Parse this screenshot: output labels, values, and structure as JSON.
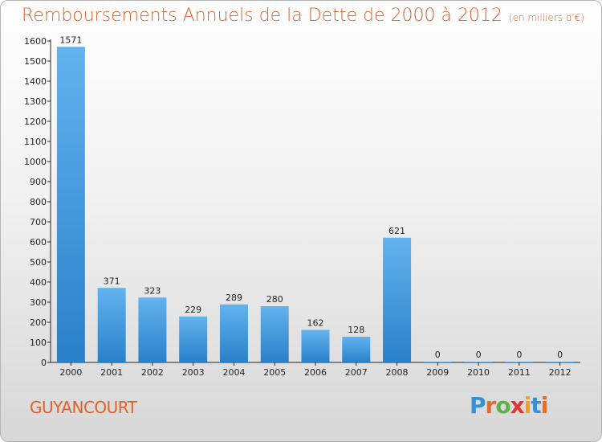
{
  "chart_data": {
    "type": "bar",
    "title": "Remboursements Annuels de la Dette de 2000 à 2012",
    "unit_note": "(en milliers d'€)",
    "categories": [
      "2000",
      "2001",
      "2002",
      "2003",
      "2004",
      "2005",
      "2006",
      "2007",
      "2008",
      "2009",
      "2010",
      "2011",
      "2012"
    ],
    "values": [
      1571,
      371,
      323,
      229,
      289,
      280,
      162,
      128,
      621,
      0,
      0,
      0,
      0
    ],
    "ylim": [
      0,
      1600
    ],
    "yticks": [
      0,
      100,
      200,
      300,
      400,
      500,
      600,
      700,
      800,
      900,
      1000,
      1100,
      1200,
      1300,
      1400,
      1500,
      1600
    ],
    "xlabel": "",
    "ylabel": "",
    "bar_color": "#4aa3e3",
    "grid": false,
    "legend": "none"
  },
  "footer": {
    "city": "GUYANCOURT",
    "logo": "Proxiti"
  },
  "colors": {
    "accent": "#e0612a"
  }
}
